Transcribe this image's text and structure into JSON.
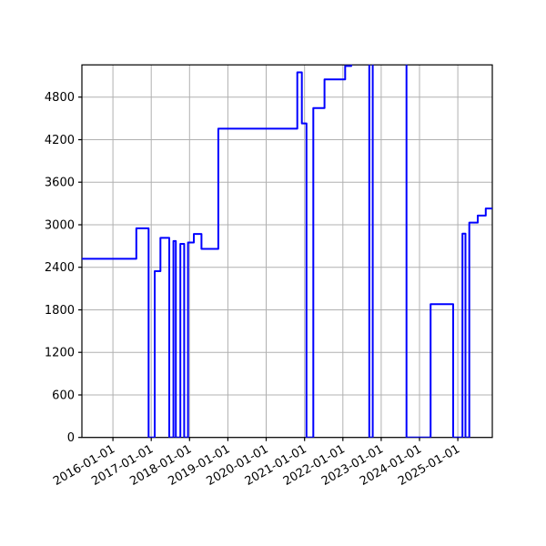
{
  "chart_data": {
    "type": "line",
    "step_mode": "post",
    "title": "",
    "xlabel": "",
    "ylabel": "",
    "grid": true,
    "legend_position": "none",
    "line_color": "#0000ff",
    "line_width": 2,
    "grid_color": "#b0b0b0",
    "axis_color": "#000000",
    "background_color": "#ffffff",
    "x_tick_rotation": 30,
    "x_tick_labels": [
      "2016-01-01",
      "2017-01-01",
      "2018-01-01",
      "2019-01-01",
      "2020-01-01",
      "2021-01-01",
      "2022-01-01",
      "2023-01-01",
      "2024-01-01",
      "2025-01-01"
    ],
    "x_tick_years": [
      2016,
      2017,
      2018,
      2019,
      2020,
      2021,
      2022,
      2023,
      2024,
      2025
    ],
    "y_ticks": [
      0,
      600,
      1200,
      1800,
      2400,
      3000,
      3600,
      4200,
      4800
    ],
    "xlim": [
      2015.19,
      2025.9
    ],
    "ylim": [
      0,
      5255
    ],
    "series": [
      {
        "steps": [
          [
            2015.19,
            2520
          ],
          [
            2016.61,
            2950
          ],
          [
            2016.93,
            0
          ],
          [
            2017.09,
            2345
          ],
          [
            2017.24,
            2815
          ],
          [
            2017.47,
            0
          ],
          [
            2017.58,
            2770
          ],
          [
            2017.64,
            0
          ],
          [
            2017.76,
            2730
          ],
          [
            2017.86,
            0
          ],
          [
            2017.96,
            2750
          ],
          [
            2018.11,
            2870
          ],
          [
            2018.31,
            2660
          ],
          [
            2018.75,
            4355
          ],
          [
            2020.81,
            5150
          ],
          [
            2020.93,
            4430
          ],
          [
            2021.05,
            0
          ],
          [
            2021.23,
            4645
          ],
          [
            2021.52,
            5050
          ],
          [
            2022.06,
            5240
          ],
          [
            2022.22,
            5500
          ],
          [
            2022.69,
            0
          ],
          [
            2022.78,
            5500
          ],
          [
            2023.66,
            0
          ],
          [
            2024.29,
            1880
          ],
          [
            2024.88,
            0
          ],
          [
            2025.12,
            2875
          ],
          [
            2025.2,
            0
          ],
          [
            2025.3,
            3030
          ],
          [
            2025.52,
            3130
          ],
          [
            2025.73,
            3230
          ]
        ],
        "end_x": 2025.9
      }
    ]
  }
}
